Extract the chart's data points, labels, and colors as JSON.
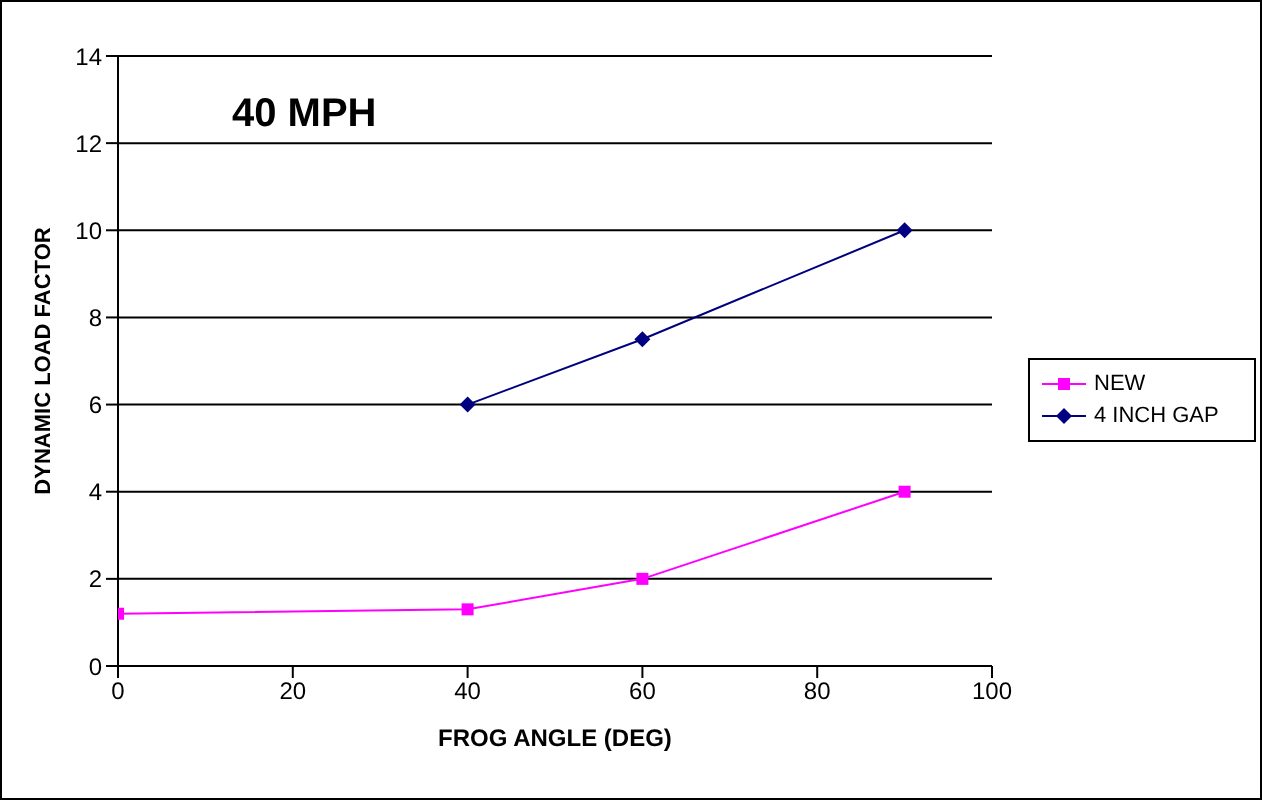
{
  "chart_data": {
    "type": "line",
    "title": "40 MPH",
    "xlabel": "FROG ANGLE (DEG)",
    "ylabel": "DYNAMIC LOAD FACTOR",
    "series": [
      {
        "name": "NEW",
        "color": "#ff00ff",
        "marker": "square",
        "x": [
          0,
          40,
          60,
          90
        ],
        "values": [
          1.2,
          1.3,
          2.0,
          4.0
        ]
      },
      {
        "name": "4 INCH GAP",
        "color": "#000080",
        "marker": "diamond",
        "x": [
          40,
          60,
          90
        ],
        "values": [
          6,
          7.5,
          10
        ]
      }
    ],
    "xlim": [
      0,
      100
    ],
    "xticks": [
      0,
      20,
      40,
      60,
      80,
      100
    ],
    "ylim": [
      0,
      14
    ],
    "yticks": [
      0,
      2,
      4,
      6,
      8,
      10,
      12,
      14
    ],
    "grid": "y",
    "legend": "right"
  }
}
